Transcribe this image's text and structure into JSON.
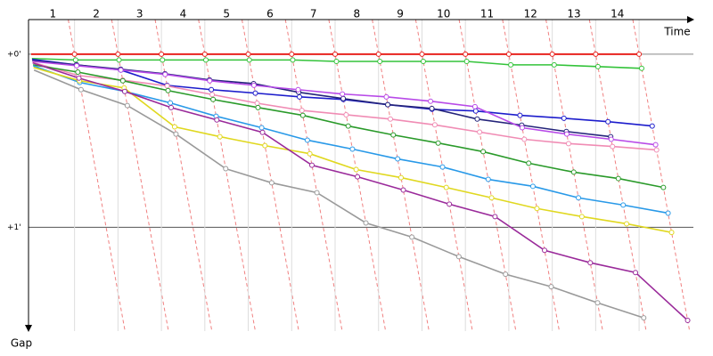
{
  "chart_data": {
    "type": "gap-line",
    "x_label": "Time",
    "y_label": "Gap",
    "x": [
      0,
      1,
      2,
      3,
      4,
      5,
      6,
      7,
      8,
      9,
      10,
      11,
      12,
      13,
      14
    ],
    "xlim": [
      -0.06,
      15.25
    ],
    "xticks": [
      1,
      2,
      3,
      4,
      5,
      6,
      7,
      8,
      9,
      10,
      11,
      12,
      13,
      14
    ],
    "ylim": [
      -12,
      96
    ],
    "yticks": [
      {
        "value": 0,
        "label": "+0'"
      },
      {
        "value": 60,
        "label": "+1'"
      }
    ],
    "series": [
      {
        "color": "#e8231e",
        "values": [
          0,
          0,
          0,
          0,
          0,
          0,
          0,
          0,
          0,
          0,
          0,
          0,
          0,
          0,
          0
        ]
      },
      {
        "color": "#33c33a",
        "values": [
          1.5,
          2,
          2,
          2,
          2,
          2,
          2,
          2.5,
          2.5,
          2.5,
          2.5,
          3.7,
          3.7,
          4.3,
          4.9
        ]
      },
      {
        "color": "#1c1ccc",
        "values": [
          1.8,
          3.7,
          5.5,
          10.8,
          12.3,
          13.5,
          14.8,
          15.7,
          17.5,
          19.1,
          19.7,
          21.2,
          22.2,
          23.4,
          24.9
        ]
      },
      {
        "color": "#24247a",
        "values": [
          2.2,
          3.7,
          5.2,
          6.8,
          8.9,
          10.2,
          13.2,
          15.4,
          17.5,
          18.8,
          22.5,
          24.6,
          26.8,
          28.6,
          null
        ]
      },
      {
        "color": "#b84ae8",
        "values": [
          2.5,
          4,
          5.5,
          7,
          9.2,
          10.8,
          12.3,
          13.8,
          14.8,
          16.3,
          18.2,
          25.5,
          27.7,
          29.5,
          31.4
        ]
      },
      {
        "color": "#f08cb4",
        "values": [
          2.8,
          7.4,
          9,
          11,
          14,
          17,
          19.5,
          21,
          22.5,
          24.5,
          27,
          29.5,
          31,
          32,
          33.2
        ]
      },
      {
        "color": "#2a9a2a",
        "values": [
          3.7,
          6.2,
          9.2,
          12.6,
          15.7,
          18.5,
          21.2,
          24.9,
          28,
          30.8,
          33.8,
          37.8,
          40.9,
          43.1,
          46.2
        ]
      },
      {
        "color": "#2899e8",
        "values": [
          4,
          9.8,
          12.9,
          16.9,
          21.5,
          25.5,
          29.8,
          32.9,
          36.3,
          39.1,
          43.4,
          45.8,
          49.8,
          52.3,
          55.1
        ]
      },
      {
        "color": "#e0d820",
        "values": [
          4.6,
          9.2,
          11.7,
          25.2,
          28.6,
          31.7,
          34.5,
          40,
          42.8,
          46.2,
          49.8,
          53.5,
          56.3,
          58.8,
          61.8
        ]
      },
      {
        "color": "#9a2a9a",
        "values": [
          3,
          8.3,
          12.9,
          18.5,
          22.8,
          27.1,
          38.5,
          42.5,
          47.1,
          52,
          56.3,
          68,
          72.3,
          75.7,
          92.3
        ]
      },
      {
        "color": "#9a9a9a",
        "values": [
          5.5,
          12.3,
          17.8,
          27.7,
          39.7,
          44.6,
          48,
          58.5,
          63.4,
          70.2,
          76.3,
          80.6,
          86.2,
          91.4,
          null
        ]
      }
    ]
  }
}
